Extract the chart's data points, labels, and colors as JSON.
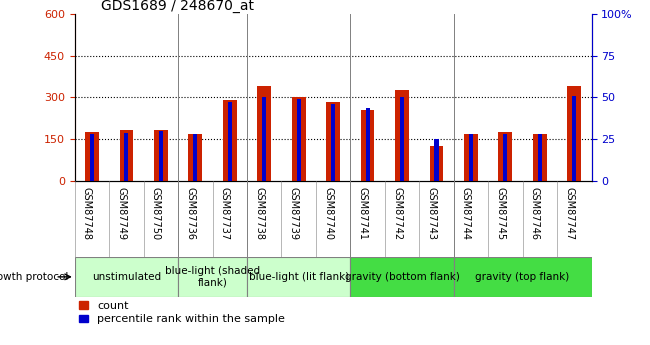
{
  "title": "GDS1689 / 248670_at",
  "samples": [
    "GSM87748",
    "GSM87749",
    "GSM87750",
    "GSM87736",
    "GSM87737",
    "GSM87738",
    "GSM87739",
    "GSM87740",
    "GSM87741",
    "GSM87742",
    "GSM87743",
    "GSM87744",
    "GSM87745",
    "GSM87746",
    "GSM87747"
  ],
  "counts": [
    175,
    185,
    185,
    170,
    290,
    340,
    300,
    285,
    255,
    325,
    125,
    170,
    175,
    170,
    340
  ],
  "percentiles": [
    28,
    29,
    30,
    28,
    47,
    50,
    49,
    46,
    44,
    50,
    25,
    28,
    28,
    28,
    51
  ],
  "groups": [
    {
      "label": "unstimulated",
      "start": 0,
      "end": 3,
      "color": "#ccffcc"
    },
    {
      "label": "blue-light (shaded\nflank)",
      "start": 3,
      "end": 5,
      "color": "#ccffcc"
    },
    {
      "label": "blue-light (lit flank)",
      "start": 5,
      "end": 8,
      "color": "#ccffcc"
    },
    {
      "label": "gravity (bottom flank)",
      "start": 8,
      "end": 11,
      "color": "#44dd44"
    },
    {
      "label": "gravity (top flank)",
      "start": 11,
      "end": 15,
      "color": "#44dd44"
    }
  ],
  "ylim_left": [
    0,
    600
  ],
  "ylim_right": [
    0,
    100
  ],
  "yticks_left": [
    0,
    150,
    300,
    450,
    600
  ],
  "yticks_right": [
    0,
    25,
    50,
    75,
    100
  ],
  "red_color": "#cc2200",
  "blue_color": "#0000cc",
  "group_separator_cols": [
    3,
    5,
    8,
    11
  ],
  "group_label_fontsize": 7.5,
  "tick_label_fontsize": 7,
  "xtick_bg_color": "#d0d0d0"
}
